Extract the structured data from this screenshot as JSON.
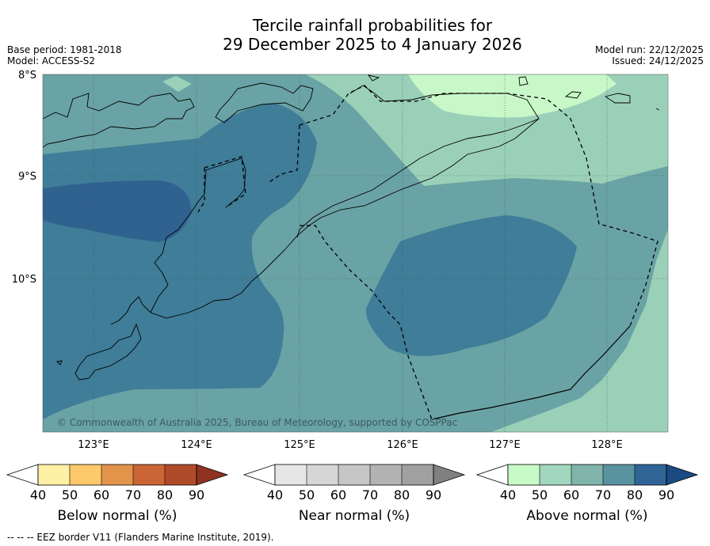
{
  "title": {
    "line1": "Tercile rainfall probabilities for",
    "line2": "29 December 2025 to 4 January 2026"
  },
  "meta": {
    "base_period": "Base period: 1981-2018",
    "model": "Model: ACCESS-S2",
    "model_run": "Model run: 22/12/2025",
    "issued": "Issued: 24/12/2025"
  },
  "map": {
    "lat_labels": [
      "8°S",
      "9°S",
      "10°S"
    ],
    "lon_labels": [
      "123°E",
      "124°E",
      "125°E",
      "126°E",
      "127°E",
      "128°E"
    ],
    "copyright": "© Commonwealth of Australia 2025, Bureau of Meteorology, supported by COSPPac"
  },
  "legends": [
    {
      "label": "Below normal (%)",
      "ticks": [
        "40",
        "50",
        "60",
        "70",
        "80",
        "90"
      ],
      "colors": [
        "#ffffff",
        "#fef0a4",
        "#fdc96a",
        "#e2944b",
        "#cc6536",
        "#b04b2a",
        "#8f3222"
      ]
    },
    {
      "label": "Near normal (%)",
      "ticks": [
        "40",
        "50",
        "60",
        "70",
        "80",
        "90"
      ],
      "colors": [
        "#ffffff",
        "#e6e6e6",
        "#d6d6d6",
        "#c6c6c6",
        "#b3b3b3",
        "#a0a0a0",
        "#808080"
      ]
    },
    {
      "label": "Above normal (%)",
      "ticks": [
        "40",
        "50",
        "60",
        "70",
        "80",
        "90"
      ],
      "colors": [
        "#ffffff",
        "#c8fac8",
        "#a0d7be",
        "#80b4aa",
        "#5a93a0",
        "#306496",
        "#1a4a80"
      ]
    }
  ],
  "footer": "--  --  -- EEZ border V11 (Flanders Marine Institute, 2019)."
}
